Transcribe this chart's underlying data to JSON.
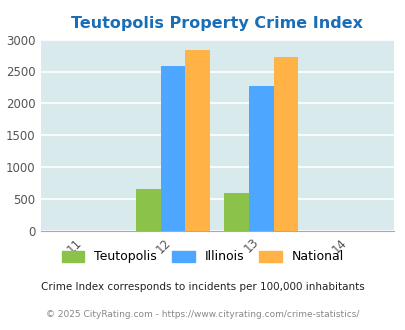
{
  "title": "Teutopolis Property Crime Index",
  "title_color": "#1a6eb5",
  "bar_groups": {
    "2012": {
      "Teutopolis": 660,
      "Illinois": 2580,
      "National": 2840
    },
    "2013": {
      "Teutopolis": 595,
      "Illinois": 2270,
      "National": 2730
    }
  },
  "colors": {
    "Teutopolis": "#8bc34a",
    "Illinois": "#4da6ff",
    "National": "#ffb347"
  },
  "ylim": [
    0,
    3000
  ],
  "yticks": [
    0,
    500,
    1000,
    1500,
    2000,
    2500,
    3000
  ],
  "xlim": [
    2010.5,
    2014.5
  ],
  "xticks": [
    2011,
    2012,
    2013,
    2014
  ],
  "xtick_labels": [
    "11",
    "12",
    "13",
    "14"
  ],
  "legend_labels": [
    "Teutopolis",
    "Illinois",
    "National"
  ],
  "footnote1": "Crime Index corresponds to incidents per 100,000 inhabitants",
  "footnote2": "© 2025 CityRating.com - https://www.cityrating.com/crime-statistics/",
  "bar_width": 0.28,
  "grid_color": "#ffffff",
  "axis_bg": "#d8eaec"
}
